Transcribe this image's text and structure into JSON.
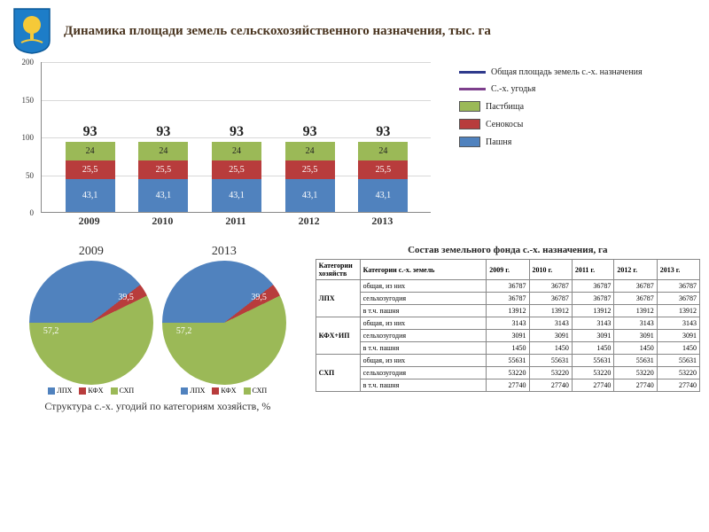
{
  "title": "Динамика площади земель сельскохозяйственного назначения, тыс. га",
  "emblem": {
    "bg": "#1d7dc8",
    "tree": "#f5c938"
  },
  "bar_chart": {
    "type": "stacked-bar",
    "ylim": [
      0,
      200
    ],
    "ytick_step": 50,
    "yticks": [
      0,
      50,
      100,
      150,
      200
    ],
    "categories": [
      "2009",
      "2010",
      "2011",
      "2012",
      "2013"
    ],
    "series": [
      {
        "key": "pashnya",
        "label": "Пашня",
        "color": "#5082be",
        "values": [
          43.1,
          43.1,
          43.1,
          43.1,
          43.1
        ],
        "text_color": "#ffffff"
      },
      {
        "key": "senokosy",
        "label": "Сенокосы",
        "color": "#b83c3c",
        "values": [
          25.5,
          25.5,
          25.5,
          25.5,
          25.5
        ],
        "text_color": "#ffffff"
      },
      {
        "key": "pastbishcha",
        "label": "Пастбища",
        "color": "#9bb957",
        "values": [
          24,
          24,
          24,
          24,
          24
        ],
        "text_color": "#222222"
      }
    ],
    "top_values": [
      93,
      93,
      93,
      93,
      93
    ],
    "grid_color": "#d8d8d8",
    "background_color": "#ffffff"
  },
  "side_legend": {
    "lines": [
      {
        "color": "#2f3a8c",
        "label": "Общая площадь земель с.-х. назначения"
      },
      {
        "color": "#7d3f8c",
        "label": "С.-х. угодья"
      }
    ],
    "boxes": [
      {
        "color": "#9bb957",
        "label": "Пастбища"
      },
      {
        "color": "#b83c3c",
        "label": "Сенокосы"
      },
      {
        "color": "#5082be",
        "label": "Пашня"
      }
    ]
  },
  "pies": {
    "caption": "Структура с.-х. угодий по категориям хозяйств, %",
    "years": [
      "2009",
      "2013"
    ],
    "segments": [
      {
        "key": "lpkh",
        "label": "ЛПХ",
        "color": "#5082be",
        "values": [
          39.5,
          39.5
        ]
      },
      {
        "key": "kfkh",
        "label": "КФХ",
        "color": "#b83c3c",
        "values": [
          3.3,
          3.3
        ]
      },
      {
        "key": "skhp",
        "label": "СХП",
        "color": "#9bb957",
        "values": [
          57.2,
          57.2
        ]
      }
    ],
    "display_values": {
      "lpkh": "39,5",
      "skhp": "57,2"
    }
  },
  "table": {
    "title": "Состав земельного фонда с.-х. назначения, га",
    "col_headers": [
      "Категории хозяйств",
      "Категории с.-х. земель",
      "2009 г.",
      "2010 г.",
      "2011 г.",
      "2012 г.",
      "2013 г."
    ],
    "groups": [
      {
        "cat": "ЛПХ",
        "rows": [
          {
            "label": "общая, из них",
            "vals": [
              36787,
              36787,
              36787,
              36787,
              36787
            ]
          },
          {
            "label": "сельхозугодия",
            "vals": [
              36787,
              36787,
              36787,
              36787,
              36787
            ]
          },
          {
            "label": "в т.ч. пашня",
            "vals": [
              13912,
              13912,
              13912,
              13912,
              13912
            ]
          }
        ]
      },
      {
        "cat": "КФХ+ИП",
        "rows": [
          {
            "label": "общая, из них",
            "vals": [
              3143,
              3143,
              3143,
              3143,
              3143
            ]
          },
          {
            "label": "сельхозугодия",
            "vals": [
              3091,
              3091,
              3091,
              3091,
              3091
            ]
          },
          {
            "label": "в т.ч. пашня",
            "vals": [
              1450,
              1450,
              1450,
              1450,
              1450
            ]
          }
        ]
      },
      {
        "cat": "СХП",
        "rows": [
          {
            "label": "общая, из них",
            "vals": [
              55631,
              55631,
              55631,
              55631,
              55631
            ]
          },
          {
            "label": "сельхозугодия",
            "vals": [
              53220,
              53220,
              53220,
              53220,
              53220
            ]
          },
          {
            "label": "в т.ч. пашня",
            "vals": [
              27740,
              27740,
              27740,
              27740,
              27740
            ]
          }
        ]
      }
    ]
  }
}
